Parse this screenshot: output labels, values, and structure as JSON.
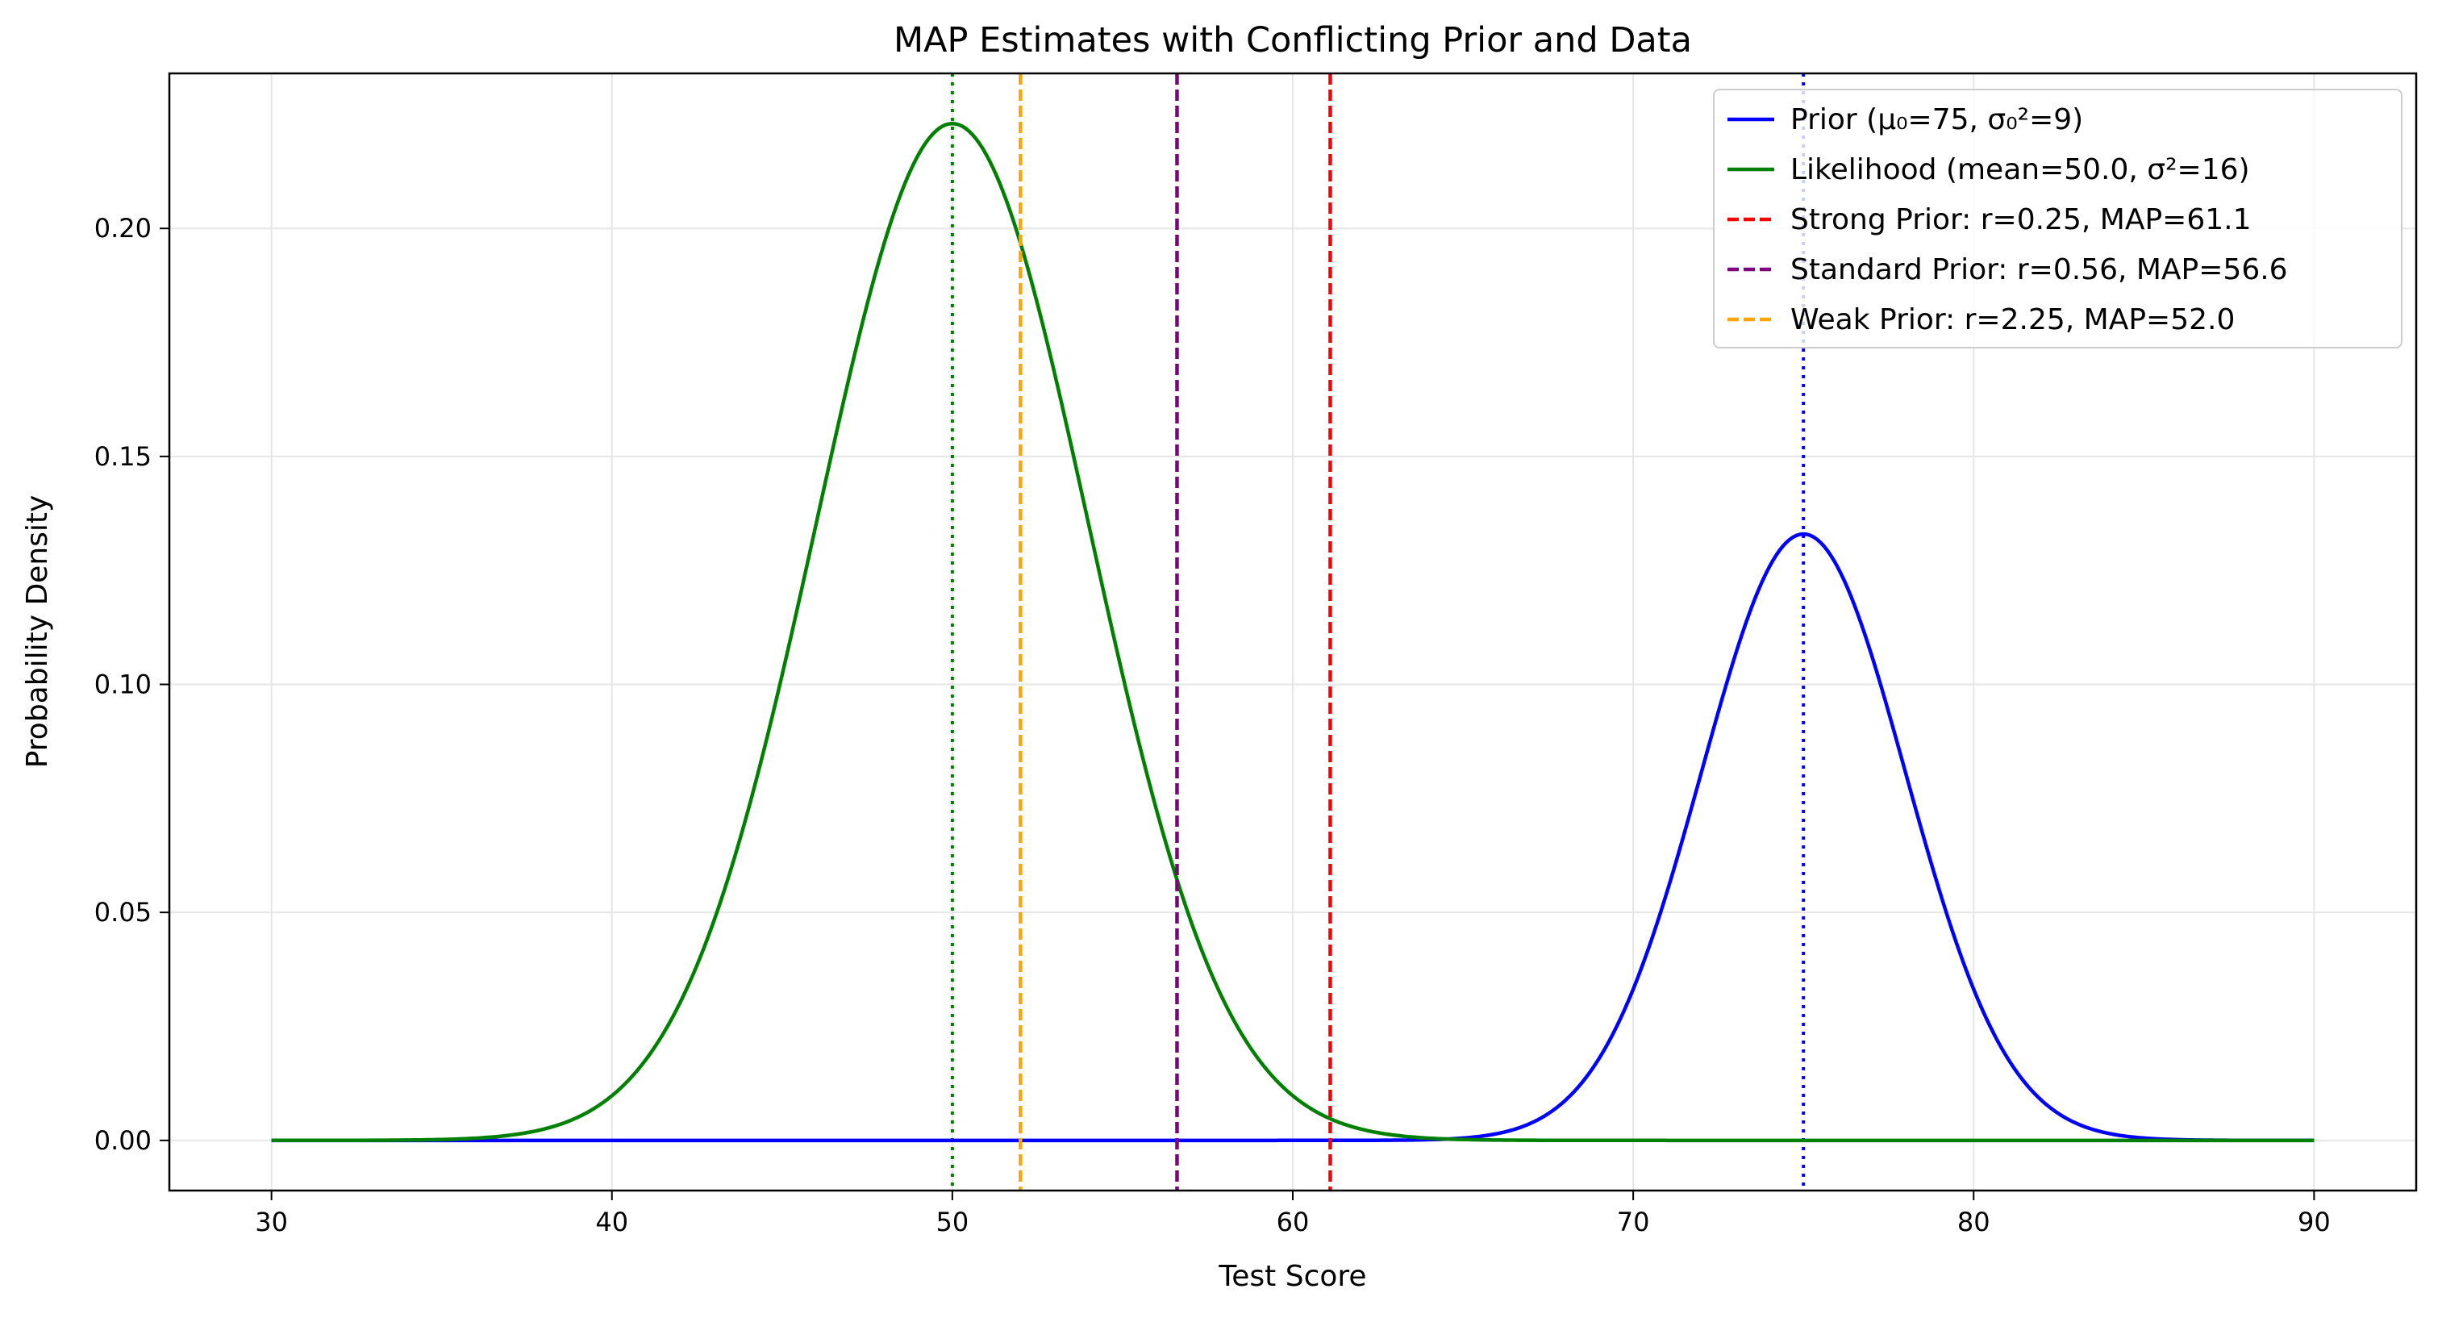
{
  "chart_data": {
    "type": "line",
    "title": "MAP Estimates with Conflicting Prior and Data",
    "xlabel": "Test Score",
    "ylabel": "Probability Density",
    "xlim": [
      27,
      93
    ],
    "ylim": [
      -0.011,
      0.234
    ],
    "xticks": [
      30,
      40,
      50,
      60,
      70,
      80,
      90
    ],
    "yticks": [
      0.0,
      0.05,
      0.1,
      0.15,
      0.2
    ],
    "xtick_labels": [
      "30",
      "40",
      "50",
      "60",
      "70",
      "80",
      "90"
    ],
    "ytick_labels": [
      "0.00",
      "0.05",
      "0.10",
      "0.15",
      "0.20"
    ],
    "grid": true,
    "legend_position": "top-right",
    "series": [
      {
        "name": "Prior (μ₀=75, σ₀²=9)",
        "kind": "normal-curve",
        "mean": 75,
        "variance": 9,
        "x_range": [
          30,
          90
        ],
        "color": "#0000ff",
        "style": "solid"
      },
      {
        "name": "Likelihood (mean=50.0, σ²=16)",
        "kind": "normal-curve",
        "mean": 50,
        "variance": 16,
        "peak": 0.223,
        "x_range": [
          30,
          90
        ],
        "color": "#008000",
        "style": "solid"
      },
      {
        "name": "Strong Prior: r=0.25, MAP=61.1",
        "kind": "vline",
        "x": 61.1,
        "color": "#ff0000",
        "style": "dashed"
      },
      {
        "name": "Standard Prior: r=0.56, MAP=56.6",
        "kind": "vline",
        "x": 56.6,
        "color": "#800080",
        "style": "dashed"
      },
      {
        "name": "Weak Prior: r=2.25, MAP=52.0",
        "kind": "vline",
        "x": 52.0,
        "color": "#ffa500",
        "style": "dashed"
      }
    ],
    "reference_lines": [
      {
        "x": 75,
        "color": "#0000ff",
        "style": "dotted"
      },
      {
        "x": 50,
        "color": "#008000",
        "style": "dotted"
      }
    ]
  }
}
